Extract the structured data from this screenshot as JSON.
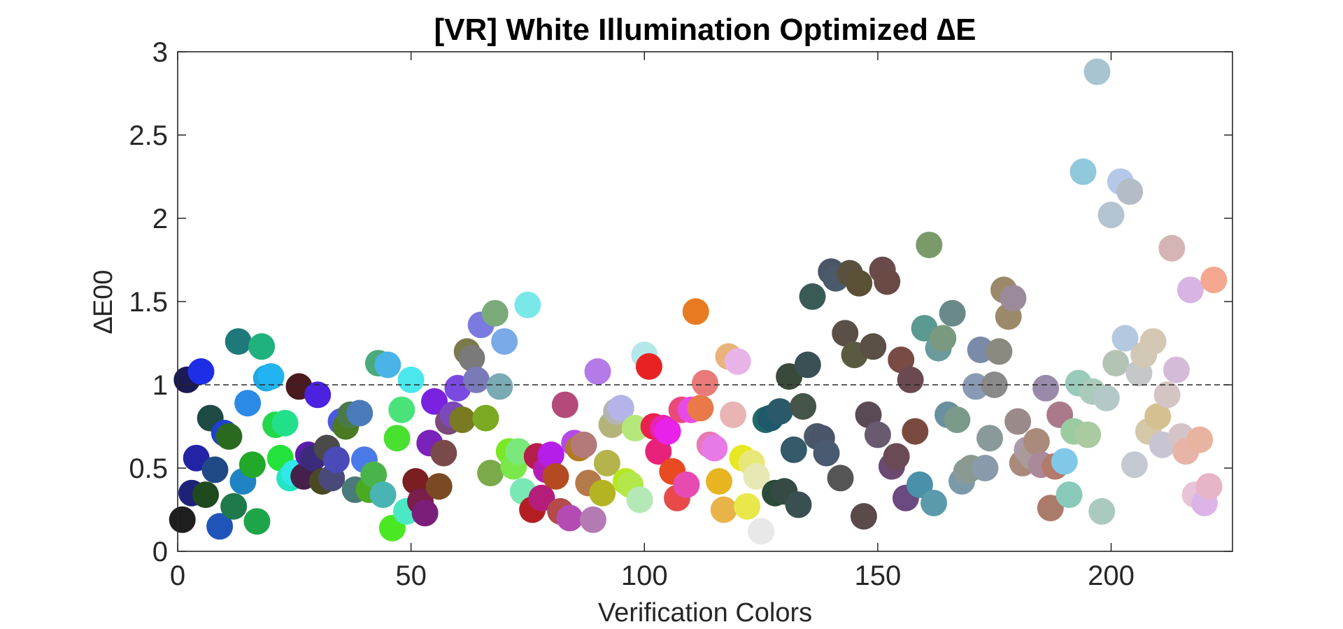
{
  "chart_data": {
    "type": "scatter",
    "title": "[VR] White Illumination Optimized ∆E",
    "xlabel": "Verification Colors",
    "ylabel": "∆E00",
    "xlim": [
      0,
      226
    ],
    "ylim": [
      0,
      3
    ],
    "x_ticks": [
      "0",
      "50",
      "100",
      "150",
      "200"
    ],
    "y_ticks": [
      "0",
      "0.5",
      "1",
      "1.5",
      "2",
      "2.5",
      "3"
    ],
    "reference_line": {
      "y": 1,
      "style": "dashed"
    },
    "grid": false,
    "legend": "none",
    "marker_colors": "each point colored with its verification color",
    "points": [
      {
        "x": 1,
        "y": 0.19,
        "color": "#1e1e1e"
      },
      {
        "x": 2,
        "y": 1.03,
        "color": "#1a1a55"
      },
      {
        "x": 3,
        "y": 0.35,
        "color": "#1e2277"
      },
      {
        "x": 4,
        "y": 0.56,
        "color": "#2323a5"
      },
      {
        "x": 5,
        "y": 1.08,
        "color": "#1e2ee6"
      },
      {
        "x": 6,
        "y": 0.34,
        "color": "#1e4a1e"
      },
      {
        "x": 7,
        "y": 0.8,
        "color": "#1e4a44"
      },
      {
        "x": 8,
        "y": 0.49,
        "color": "#1f4a86"
      },
      {
        "x": 9,
        "y": 0.15,
        "color": "#1f55b9"
      },
      {
        "x": 10,
        "y": 0.71,
        "color": "#2040d0"
      },
      {
        "x": 11,
        "y": 0.69,
        "color": "#2a6a1f"
      },
      {
        "x": 12,
        "y": 0.27,
        "color": "#1e7a4a"
      },
      {
        "x": 13,
        "y": 1.26,
        "color": "#1e7a7a"
      },
      {
        "x": 14,
        "y": 0.42,
        "color": "#2083c4"
      },
      {
        "x": 15,
        "y": 0.89,
        "color": "#2a8ae6"
      },
      {
        "x": 16,
        "y": 0.52,
        "color": "#22a82a"
      },
      {
        "x": 17,
        "y": 0.18,
        "color": "#1ea54a"
      },
      {
        "x": 18,
        "y": 1.23,
        "color": "#20b27c"
      },
      {
        "x": 19,
        "y": 1.04,
        "color": "#20a8e0"
      },
      {
        "x": 20,
        "y": 1.05,
        "color": "#22b4f0"
      },
      {
        "x": 21,
        "y": 0.76,
        "color": "#22d84a"
      },
      {
        "x": 22,
        "y": 0.56,
        "color": "#22e33c"
      },
      {
        "x": 23,
        "y": 0.77,
        "color": "#22e08a"
      },
      {
        "x": 24,
        "y": 0.44,
        "color": "#22e5c4"
      },
      {
        "x": 25,
        "y": 0.47,
        "color": "#30e8e8"
      },
      {
        "x": 26,
        "y": 0.99,
        "color": "#4a1a1e"
      },
      {
        "x": 27,
        "y": 0.45,
        "color": "#45204a"
      },
      {
        "x": 28,
        "y": 0.58,
        "color": "#5a1eaa"
      },
      {
        "x": 29,
        "y": 0.56,
        "color": "#3c2a7a"
      },
      {
        "x": 30,
        "y": 0.94,
        "color": "#4a22e0"
      },
      {
        "x": 31,
        "y": 0.42,
        "color": "#4a4a22"
      },
      {
        "x": 32,
        "y": 0.62,
        "color": "#4a4a4a"
      },
      {
        "x": 33,
        "y": 0.44,
        "color": "#4a4a7a"
      },
      {
        "x": 34,
        "y": 0.55,
        "color": "#4a4ab9"
      },
      {
        "x": 35,
        "y": 0.78,
        "color": "#4a5ae0"
      },
      {
        "x": 36,
        "y": 0.75,
        "color": "#4a7a22"
      },
      {
        "x": 37,
        "y": 0.82,
        "color": "#4a7a4a"
      },
      {
        "x": 38,
        "y": 0.37,
        "color": "#4a7a7a"
      },
      {
        "x": 39,
        "y": 0.83,
        "color": "#4a7ab9"
      },
      {
        "x": 40,
        "y": 0.55,
        "color": "#4a7ae8"
      },
      {
        "x": 41,
        "y": 0.37,
        "color": "#4aaa22"
      },
      {
        "x": 42,
        "y": 0.46,
        "color": "#4ab44a"
      },
      {
        "x": 43,
        "y": 1.13,
        "color": "#4aaa7a"
      },
      {
        "x": 44,
        "y": 0.34,
        "color": "#4ab4b4"
      },
      {
        "x": 45,
        "y": 1.12,
        "color": "#4ab4e8"
      },
      {
        "x": 46,
        "y": 0.14,
        "color": "#4ae822"
      },
      {
        "x": 47,
        "y": 0.68,
        "color": "#4ae030"
      },
      {
        "x": 48,
        "y": 0.85,
        "color": "#4ae37a"
      },
      {
        "x": 49,
        "y": 0.24,
        "color": "#4ae8c4"
      },
      {
        "x": 50,
        "y": 1.03,
        "color": "#4ae8ec"
      },
      {
        "x": 51,
        "y": 0.42,
        "color": "#7a1e22"
      },
      {
        "x": 52,
        "y": 0.3,
        "color": "#7a1e4a"
      },
      {
        "x": 53,
        "y": 0.23,
        "color": "#7a1e7a"
      },
      {
        "x": 54,
        "y": 0.65,
        "color": "#7a22b9"
      },
      {
        "x": 55,
        "y": 0.9,
        "color": "#7a22e0"
      },
      {
        "x": 56,
        "y": 0.39,
        "color": "#7a4a22"
      },
      {
        "x": 57,
        "y": 0.59,
        "color": "#7a4a4a"
      },
      {
        "x": 58,
        "y": 0.78,
        "color": "#7a4a7a"
      },
      {
        "x": 59,
        "y": 0.82,
        "color": "#7a4ab9"
      },
      {
        "x": 60,
        "y": 0.98,
        "color": "#7a4ae0"
      },
      {
        "x": 61,
        "y": 0.79,
        "color": "#7a7a22"
      },
      {
        "x": 62,
        "y": 1.2,
        "color": "#7a7a4a"
      },
      {
        "x": 63,
        "y": 1.16,
        "color": "#7a7a7a"
      },
      {
        "x": 64,
        "y": 1.03,
        "color": "#7a7ab9"
      },
      {
        "x": 65,
        "y": 1.36,
        "color": "#7a7ae0"
      },
      {
        "x": 66,
        "y": 0.8,
        "color": "#7aaa22"
      },
      {
        "x": 67,
        "y": 0.47,
        "color": "#7aaa4a"
      },
      {
        "x": 68,
        "y": 1.43,
        "color": "#7aaa7a"
      },
      {
        "x": 69,
        "y": 0.99,
        "color": "#7aaab4"
      },
      {
        "x": 70,
        "y": 1.26,
        "color": "#7aaae8"
      },
      {
        "x": 71,
        "y": 0.6,
        "color": "#7ae822"
      },
      {
        "x": 72,
        "y": 0.51,
        "color": "#7ae84a"
      },
      {
        "x": 73,
        "y": 0.6,
        "color": "#7ae87a"
      },
      {
        "x": 74,
        "y": 0.36,
        "color": "#7ae8b4"
      },
      {
        "x": 75,
        "y": 1.48,
        "color": "#7ae8e8"
      },
      {
        "x": 76,
        "y": 0.25,
        "color": "#b41e22"
      },
      {
        "x": 77,
        "y": 0.57,
        "color": "#b41e4a"
      },
      {
        "x": 78,
        "y": 0.32,
        "color": "#b41e7a"
      },
      {
        "x": 79,
        "y": 0.49,
        "color": "#b41eb4"
      },
      {
        "x": 80,
        "y": 0.58,
        "color": "#b41ee8"
      },
      {
        "x": 81,
        "y": 0.45,
        "color": "#b44a22"
      },
      {
        "x": 82,
        "y": 0.24,
        "color": "#b44a4a"
      },
      {
        "x": 83,
        "y": 0.88,
        "color": "#b44a7a"
      },
      {
        "x": 84,
        "y": 0.2,
        "color": "#b44ab4"
      },
      {
        "x": 85,
        "y": 0.65,
        "color": "#b44ae8"
      },
      {
        "x": 86,
        "y": 0.62,
        "color": "#b47a22"
      },
      {
        "x": 87,
        "y": 0.64,
        "color": "#b47a7a"
      },
      {
        "x": 88,
        "y": 0.41,
        "color": "#b47a4a"
      },
      {
        "x": 89,
        "y": 0.19,
        "color": "#b47ab4"
      },
      {
        "x": 90,
        "y": 1.08,
        "color": "#b47ae8"
      },
      {
        "x": 91,
        "y": 0.35,
        "color": "#b4b422"
      },
      {
        "x": 92,
        "y": 0.53,
        "color": "#b4b44a"
      },
      {
        "x": 93,
        "y": 0.76,
        "color": "#b4b47a"
      },
      {
        "x": 94,
        "y": 0.84,
        "color": "#b4b4b4"
      },
      {
        "x": 95,
        "y": 0.86,
        "color": "#b4b4e8"
      },
      {
        "x": 96,
        "y": 0.42,
        "color": "#b4e822"
      },
      {
        "x": 97,
        "y": 0.4,
        "color": "#b4e84a"
      },
      {
        "x": 98,
        "y": 0.74,
        "color": "#b4e87a"
      },
      {
        "x": 99,
        "y": 0.31,
        "color": "#b4e8b4"
      },
      {
        "x": 100,
        "y": 1.18,
        "color": "#b4e8e8"
      },
      {
        "x": 101,
        "y": 1.11,
        "color": "#e82222"
      },
      {
        "x": 102,
        "y": 0.75,
        "color": "#e8224a"
      },
      {
        "x": 103,
        "y": 0.6,
        "color": "#e8227a"
      },
      {
        "x": 104,
        "y": 0.74,
        "color": "#e822b4"
      },
      {
        "x": 105,
        "y": 0.72,
        "color": "#e822e8"
      },
      {
        "x": 106,
        "y": 0.48,
        "color": "#e84a22"
      },
      {
        "x": 107,
        "y": 0.32,
        "color": "#e84a4a"
      },
      {
        "x": 108,
        "y": 0.85,
        "color": "#e84a7a"
      },
      {
        "x": 109,
        "y": 0.4,
        "color": "#e84ab4"
      },
      {
        "x": 110,
        "y": 0.85,
        "color": "#e84ae8"
      },
      {
        "x": 111,
        "y": 1.44,
        "color": "#e87a22"
      },
      {
        "x": 112,
        "y": 0.86,
        "color": "#e87a4a"
      },
      {
        "x": 113,
        "y": 1.01,
        "color": "#e87a7a"
      },
      {
        "x": 114,
        "y": 0.64,
        "color": "#e87ab4"
      },
      {
        "x": 115,
        "y": 0.62,
        "color": "#e87ae8"
      },
      {
        "x": 116,
        "y": 0.42,
        "color": "#e8b422"
      },
      {
        "x": 117,
        "y": 0.25,
        "color": "#e8b44a"
      },
      {
        "x": 118,
        "y": 1.17,
        "color": "#e8b47a"
      },
      {
        "x": 119,
        "y": 0.82,
        "color": "#e8b4b4"
      },
      {
        "x": 120,
        "y": 1.14,
        "color": "#e8b4e8"
      },
      {
        "x": 121,
        "y": 0.56,
        "color": "#e8e822"
      },
      {
        "x": 122,
        "y": 0.27,
        "color": "#e8e84a"
      },
      {
        "x": 123,
        "y": 0.53,
        "color": "#e8e87a"
      },
      {
        "x": 124,
        "y": 0.45,
        "color": "#e8e8b4"
      },
      {
        "x": 125,
        "y": 0.12,
        "color": "#e8e8e8"
      },
      {
        "x": 126,
        "y": 0.79,
        "color": "#226a6a"
      },
      {
        "x": 127,
        "y": 0.8,
        "color": "#1e5a6a"
      },
      {
        "x": 128,
        "y": 0.35,
        "color": "#2a4a3a"
      },
      {
        "x": 129,
        "y": 0.84,
        "color": "#2a5a6a"
      },
      {
        "x": 130,
        "y": 0.36,
        "color": "#354a45"
      },
      {
        "x": 131,
        "y": 1.05,
        "color": "#3a4a3a"
      },
      {
        "x": 132,
        "y": 0.61,
        "color": "#355a6a"
      },
      {
        "x": 133,
        "y": 0.28,
        "color": "#3a5050"
      },
      {
        "x": 134,
        "y": 0.87,
        "color": "#45554a"
      },
      {
        "x": 135,
        "y": 1.12,
        "color": "#3a5055"
      },
      {
        "x": 136,
        "y": 1.53,
        "color": "#3a5a55"
      },
      {
        "x": 137,
        "y": 0.69,
        "color": "#4a5a6a"
      },
      {
        "x": 138,
        "y": 0.68,
        "color": "#4a556a"
      },
      {
        "x": 139,
        "y": 0.59,
        "color": "#4a5a70"
      },
      {
        "x": 140,
        "y": 1.68,
        "color": "#4a5566"
      },
      {
        "x": 141,
        "y": 1.64,
        "color": "#4a5a6a"
      },
      {
        "x": 142,
        "y": 0.44,
        "color": "#555555"
      },
      {
        "x": 143,
        "y": 1.31,
        "color": "#5a5048"
      },
      {
        "x": 144,
        "y": 1.67,
        "color": "#5a5040"
      },
      {
        "x": 145,
        "y": 1.18,
        "color": "#5a5a40"
      },
      {
        "x": 146,
        "y": 1.61,
        "color": "#5a5035"
      },
      {
        "x": 147,
        "y": 0.21,
        "color": "#5a4a4a"
      },
      {
        "x": 148,
        "y": 0.82,
        "color": "#5a4a55"
      },
      {
        "x": 149,
        "y": 1.23,
        "color": "#5a5045"
      },
      {
        "x": 150,
        "y": 0.7,
        "color": "#6a5a70"
      },
      {
        "x": 151,
        "y": 1.69,
        "color": "#6a4a4a"
      },
      {
        "x": 152,
        "y": 1.62,
        "color": "#6a4a45"
      },
      {
        "x": 153,
        "y": 0.51,
        "color": "#6a4a70"
      },
      {
        "x": 154,
        "y": 0.57,
        "color": "#6a4a55"
      },
      {
        "x": 155,
        "y": 1.15,
        "color": "#7a4a45"
      },
      {
        "x": 156,
        "y": 0.32,
        "color": "#6a4a80"
      },
      {
        "x": 157,
        "y": 1.03,
        "color": "#6a4a50"
      },
      {
        "x": 158,
        "y": 0.72,
        "color": "#7a4a40"
      },
      {
        "x": 159,
        "y": 0.4,
        "color": "#4a90a8"
      },
      {
        "x": 160,
        "y": 1.34,
        "color": "#5a9a90"
      },
      {
        "x": 161,
        "y": 1.84,
        "color": "#7a9a6a"
      },
      {
        "x": 162,
        "y": 0.29,
        "color": "#5a9aaa"
      },
      {
        "x": 163,
        "y": 1.22,
        "color": "#6a9a9a"
      },
      {
        "x": 164,
        "y": 1.28,
        "color": "#7a9a80"
      },
      {
        "x": 165,
        "y": 0.82,
        "color": "#6a90a0"
      },
      {
        "x": 166,
        "y": 1.43,
        "color": "#6a8a8a"
      },
      {
        "x": 167,
        "y": 0.79,
        "color": "#7a9a8a"
      },
      {
        "x": 168,
        "y": 0.42,
        "color": "#7a9aaa"
      },
      {
        "x": 169,
        "y": 0.48,
        "color": "#8a9a9a"
      },
      {
        "x": 170,
        "y": 0.5,
        "color": "#8a9a90"
      },
      {
        "x": 171,
        "y": 0.99,
        "color": "#8a9ab4"
      },
      {
        "x": 172,
        "y": 1.21,
        "color": "#7a8aa8"
      },
      {
        "x": 173,
        "y": 0.5,
        "color": "#8a9aaa"
      },
      {
        "x": 174,
        "y": 0.68,
        "color": "#8a9a9a"
      },
      {
        "x": 175,
        "y": 1.0,
        "color": "#8a8a8a"
      },
      {
        "x": 176,
        "y": 1.2,
        "color": "#8a8a80"
      },
      {
        "x": 177,
        "y": 1.57,
        "color": "#9a8a6a"
      },
      {
        "x": 178,
        "y": 1.41,
        "color": "#9a8a6a"
      },
      {
        "x": 179,
        "y": 1.52,
        "color": "#9a8a9a"
      },
      {
        "x": 180,
        "y": 0.78,
        "color": "#9a8a8a"
      },
      {
        "x": 181,
        "y": 0.53,
        "color": "#aa8a7a"
      },
      {
        "x": 182,
        "y": 0.61,
        "color": "#aa9aaa"
      },
      {
        "x": 183,
        "y": 0.57,
        "color": "#aa9a9a"
      },
      {
        "x": 184,
        "y": 0.66,
        "color": "#aa8a7a"
      },
      {
        "x": 185,
        "y": 0.52,
        "color": "#aa8a9a"
      },
      {
        "x": 186,
        "y": 0.98,
        "color": "#9a8aaa"
      },
      {
        "x": 187,
        "y": 0.26,
        "color": "#aa7a6a"
      },
      {
        "x": 188,
        "y": 0.51,
        "color": "#b47a6a"
      },
      {
        "x": 189,
        "y": 0.82,
        "color": "#aa7a8a"
      },
      {
        "x": 190,
        "y": 0.54,
        "color": "#80c8e8"
      },
      {
        "x": 191,
        "y": 0.34,
        "color": "#8acaba"
      },
      {
        "x": 192,
        "y": 0.72,
        "color": "#9acca0"
      },
      {
        "x": 193,
        "y": 1.01,
        "color": "#9acaba"
      },
      {
        "x": 194,
        "y": 2.28,
        "color": "#90c8dc"
      },
      {
        "x": 195,
        "y": 0.7,
        "color": "#aacaa0"
      },
      {
        "x": 196,
        "y": 0.96,
        "color": "#aacaba"
      },
      {
        "x": 197,
        "y": 2.88,
        "color": "#a8c4d0"
      },
      {
        "x": 198,
        "y": 0.24,
        "color": "#aacac0"
      },
      {
        "x": 199,
        "y": 0.92,
        "color": "#b4c8c8"
      },
      {
        "x": 200,
        "y": 2.02,
        "color": "#b4c4d0"
      },
      {
        "x": 201,
        "y": 1.13,
        "color": "#b4c4b4"
      },
      {
        "x": 202,
        "y": 2.22,
        "color": "#b4c8e8"
      },
      {
        "x": 203,
        "y": 1.28,
        "color": "#b4c8e0"
      },
      {
        "x": 204,
        "y": 2.16,
        "color": "#b4bcc8"
      },
      {
        "x": 205,
        "y": 0.52,
        "color": "#c4c8d0"
      },
      {
        "x": 206,
        "y": 1.07,
        "color": "#c4c8c8"
      },
      {
        "x": 207,
        "y": 1.18,
        "color": "#d0c8b4"
      },
      {
        "x": 208,
        "y": 0.72,
        "color": "#d4c8a8"
      },
      {
        "x": 209,
        "y": 1.26,
        "color": "#d4c8b4"
      },
      {
        "x": 210,
        "y": 0.81,
        "color": "#d4c090"
      },
      {
        "x": 211,
        "y": 0.64,
        "color": "#c8c4d4"
      },
      {
        "x": 212,
        "y": 0.94,
        "color": "#d4c4c4"
      },
      {
        "x": 213,
        "y": 1.82,
        "color": "#d4b4b4"
      },
      {
        "x": 214,
        "y": 1.09,
        "color": "#d4bcd8"
      },
      {
        "x": 215,
        "y": 0.69,
        "color": "#d4c4c8"
      },
      {
        "x": 216,
        "y": 0.6,
        "color": "#e8b4a8"
      },
      {
        "x": 217,
        "y": 1.57,
        "color": "#d8b4e4"
      },
      {
        "x": 218,
        "y": 0.34,
        "color": "#e8c4d8"
      },
      {
        "x": 219,
        "y": 0.67,
        "color": "#e8b4a0"
      },
      {
        "x": 220,
        "y": 0.29,
        "color": "#dcb4e8"
      },
      {
        "x": 221,
        "y": 0.39,
        "color": "#e8b4c8"
      },
      {
        "x": 222,
        "y": 1.63,
        "color": "#f4a890"
      }
    ]
  }
}
